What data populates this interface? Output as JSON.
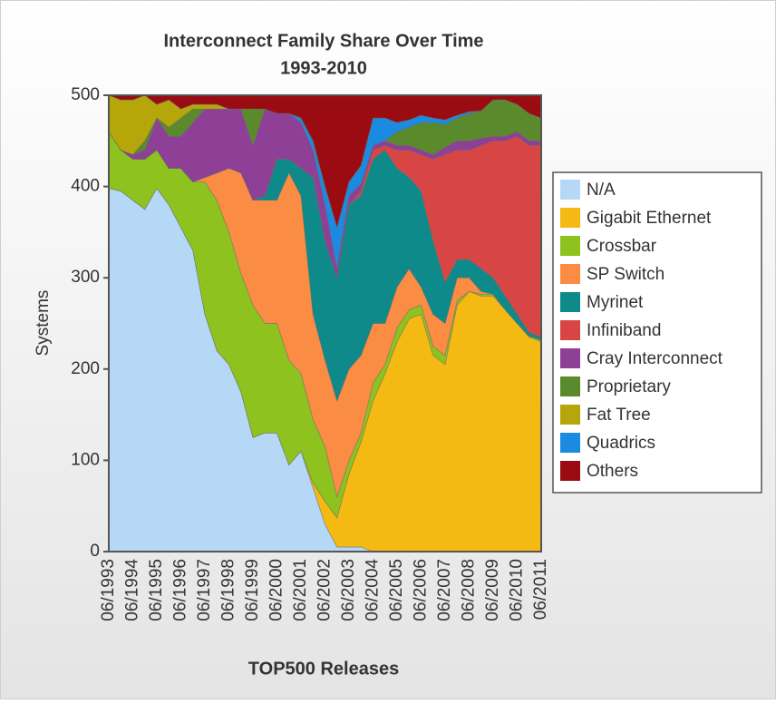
{
  "chart_data": {
    "type": "stacked_area",
    "title": "Interconnect Family Share Over Time",
    "subtitle": "1993-2010",
    "x_label": "TOP500 Releases",
    "y_label": "Systems",
    "categories": [
      "06/1993",
      null,
      "06/1994",
      null,
      "06/1995",
      null,
      "06/1996",
      null,
      "06/1997",
      null,
      "06/1998",
      null,
      "06/1999",
      null,
      "06/2000",
      null,
      "06/2001",
      null,
      "06/2002",
      null,
      "06/2003",
      null,
      "06/2004",
      null,
      "06/2005",
      null,
      "06/2006",
      null,
      "06/2007",
      null,
      "06/2008",
      null,
      "06/2009",
      null,
      "06/2010",
      null,
      "06/2011"
    ],
    "ylim": [
      0,
      500
    ],
    "yticks": [
      0,
      100,
      200,
      300,
      400,
      500
    ],
    "legend": "right",
    "series": [
      {
        "name": "N/A",
        "color": "#b5d8f7",
        "values": [
          398,
          395,
          385,
          375,
          398,
          380,
          355,
          330,
          260,
          220,
          205,
          175,
          125,
          130,
          130,
          95,
          110,
          70,
          30,
          5,
          5,
          5,
          0,
          0,
          0,
          0,
          0,
          0,
          0,
          0,
          0,
          0,
          0,
          0,
          0,
          0,
          0
        ]
      },
      {
        "name": "Gigabit Ethernet",
        "color": "#f5b914",
        "values": [
          0,
          0,
          0,
          0,
          0,
          0,
          0,
          0,
          0,
          0,
          0,
          0,
          0,
          0,
          0,
          0,
          0,
          5,
          25,
          32,
          80,
          115,
          165,
          195,
          230,
          255,
          260,
          215,
          205,
          270,
          285,
          280,
          280,
          265,
          250,
          235,
          230
        ]
      },
      {
        "name": "Crossbar",
        "color": "#8dc21f",
        "values": [
          62,
          45,
          45,
          55,
          42,
          40,
          65,
          75,
          145,
          165,
          145,
          130,
          145,
          120,
          120,
          115,
          85,
          70,
          60,
          23,
          15,
          10,
          20,
          10,
          15,
          10,
          10,
          10,
          10,
          5,
          0,
          2,
          2,
          0,
          0,
          1,
          2
        ]
      },
      {
        "name": "SP Switch",
        "color": "#fb8c43",
        "values": [
          0,
          0,
          0,
          0,
          0,
          0,
          0,
          0,
          5,
          30,
          70,
          110,
          115,
          135,
          135,
          205,
          195,
          115,
          95,
          105,
          100,
          85,
          65,
          45,
          45,
          45,
          20,
          35,
          35,
          25,
          15,
          3,
          0,
          0,
          0,
          0,
          0
        ]
      },
      {
        "name": "Myrinet",
        "color": "#0e8a8a",
        "values": [
          0,
          0,
          0,
          0,
          0,
          0,
          0,
          0,
          0,
          0,
          0,
          0,
          0,
          5,
          45,
          15,
          30,
          150,
          130,
          135,
          180,
          175,
          180,
          190,
          130,
          100,
          105,
          80,
          45,
          20,
          20,
          25,
          18,
          15,
          10,
          4,
          3
        ]
      },
      {
        "name": "Infiniband",
        "color": "#d84545",
        "values": [
          0,
          0,
          0,
          0,
          0,
          0,
          0,
          0,
          0,
          0,
          0,
          0,
          0,
          0,
          0,
          0,
          0,
          0,
          0,
          0,
          0,
          5,
          10,
          5,
          20,
          30,
          40,
          90,
          140,
          120,
          120,
          135,
          150,
          170,
          195,
          205,
          210
        ]
      },
      {
        "name": "Cray Interconnect",
        "color": "#8e3f96",
        "values": [
          0,
          0,
          5,
          10,
          35,
          35,
          35,
          65,
          75,
          70,
          65,
          70,
          60,
          95,
          50,
          50,
          50,
          30,
          40,
          10,
          10,
          8,
          5,
          5,
          5,
          5,
          5,
          5,
          8,
          10,
          10,
          8,
          5,
          5,
          5,
          5,
          5
        ]
      },
      {
        "name": "Proprietary",
        "color": "#5a8a2c",
        "values": [
          0,
          0,
          0,
          10,
          0,
          10,
          20,
          15,
          0,
          0,
          0,
          0,
          40,
          0,
          0,
          0,
          0,
          0,
          0,
          0,
          0,
          0,
          0,
          0,
          15,
          20,
          30,
          35,
          25,
          25,
          30,
          30,
          40,
          40,
          30,
          30,
          25
        ]
      },
      {
        "name": "Fat Tree",
        "color": "#b5a70a",
        "values": [
          40,
          55,
          60,
          50,
          15,
          30,
          10,
          5,
          5,
          5,
          0,
          0,
          0,
          0,
          0,
          0,
          0,
          0,
          0,
          0,
          0,
          0,
          0,
          0,
          0,
          0,
          0,
          0,
          0,
          0,
          0,
          0,
          0,
          0,
          0,
          0,
          0
        ]
      },
      {
        "name": "Quadrics",
        "color": "#1a8be0",
        "values": [
          0,
          0,
          0,
          0,
          0,
          0,
          0,
          0,
          0,
          0,
          0,
          0,
          0,
          0,
          0,
          0,
          5,
          10,
          20,
          45,
          15,
          20,
          30,
          25,
          10,
          8,
          8,
          5,
          5,
          3,
          2,
          0,
          0,
          0,
          0,
          0,
          0
        ]
      },
      {
        "name": "Others",
        "color": "#9a0c12",
        "values": [
          0,
          5,
          5,
          0,
          10,
          5,
          15,
          10,
          10,
          10,
          15,
          15,
          15,
          15,
          20,
          20,
          25,
          50,
          100,
          145,
          95,
          77,
          25,
          25,
          30,
          27,
          22,
          25,
          27,
          22,
          18,
          17,
          5,
          5,
          10,
          20,
          25
        ]
      }
    ]
  }
}
